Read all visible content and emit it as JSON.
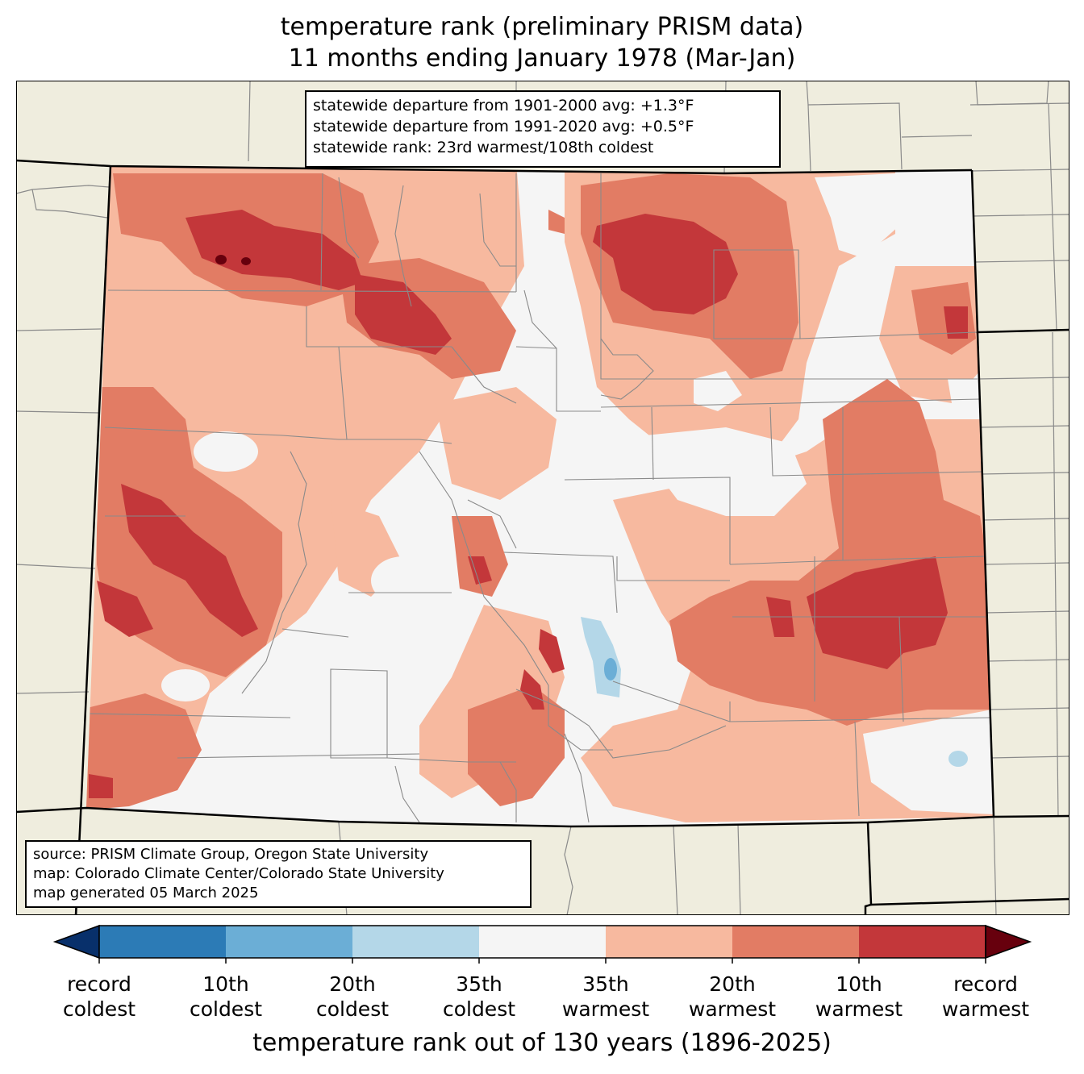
{
  "title_line1": "temperature rank (preliminary PRISM data)",
  "title_line2": "11 months ending January 1978 (Mar-Jan)",
  "stats": {
    "line1": "statewide departure from 1901-2000 avg: +1.3°F",
    "line2": "statewide departure from 1991-2020 avg: +0.5°F",
    "line3": "statewide rank: 23rd warmest/108th coldest"
  },
  "source": {
    "line1": "source: PRISM Climate Group, Oregon State University",
    "line2": "map: Colorado Climate Center/Colorado State University",
    "line3": "map generated 05 March 2025"
  },
  "colorbar": {
    "label": "temperature rank out of 130 years (1896-2025)",
    "colors": [
      "#08306b",
      "#2c7bb6",
      "#6baed6",
      "#b4d7e8",
      "#f5f5f5",
      "#f7b99f",
      "#e27c64",
      "#c3373a",
      "#67000d"
    ],
    "ticks": [
      {
        "line1": "record",
        "line2": "coldest"
      },
      {
        "line1": "10th",
        "line2": "coldest"
      },
      {
        "line1": "20th",
        "line2": "coldest"
      },
      {
        "line1": "35th",
        "line2": "coldest"
      },
      {
        "line1": "35th",
        "line2": "warmest"
      },
      {
        "line1": "20th",
        "line2": "warmest"
      },
      {
        "line1": "10th",
        "line2": "warmest"
      },
      {
        "line1": "record",
        "line2": "warmest"
      }
    ]
  },
  "map_colors": {
    "background_land": "#efedde",
    "near_normal": "#f5f5f5",
    "warm_35": "#f7b99f",
    "warm_20": "#e27c64",
    "warm_10": "#c3373a",
    "record_warm": "#67000d",
    "cold_35": "#b4d7e8",
    "cold_20": "#6baed6"
  }
}
